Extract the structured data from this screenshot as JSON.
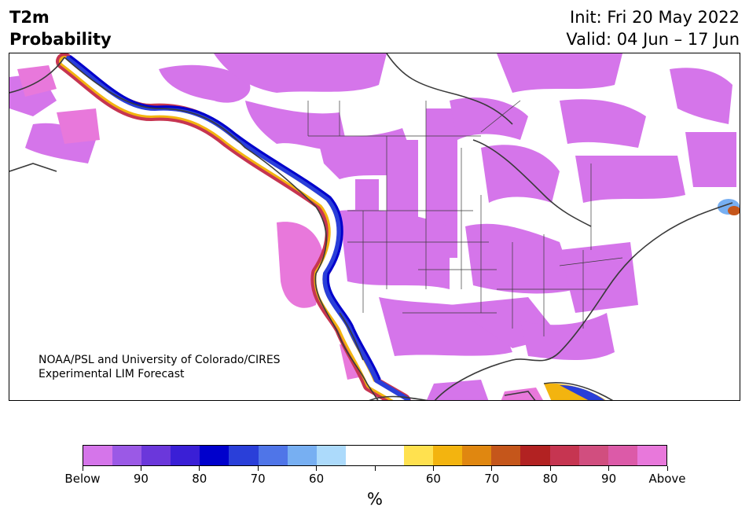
{
  "title": {
    "line1": "T2m",
    "line2": "Probability"
  },
  "run": {
    "init": "Init: Fri 20 May 2022",
    "valid": "Valid: 04 Jun – 17 Jun"
  },
  "credit": {
    "line1": "NOAA/PSL and University of Colorado/CIRES",
    "line2": "Experimental LIM Forecast"
  },
  "colorbar": {
    "colors": [
      "#d575ea",
      "#9b59e6",
      "#6b37db",
      "#3a1fd6",
      "#0000cc",
      "#2a3fd9",
      "#4f75e8",
      "#77aff2",
      "#acdafb",
      "#ffffff",
      "#ffffff",
      "#ffe14f",
      "#f3b40f",
      "#e08710",
      "#c5561b",
      "#b22222",
      "#c63551",
      "#d14e7f",
      "#dc5aa8",
      "#e878db"
    ],
    "labels": [
      "Below",
      "90",
      "80",
      "70",
      "60",
      "",
      "60",
      "70",
      "80",
      "90",
      "Above"
    ],
    "unit": "%"
  },
  "colors": {
    "below_fill": "#d575ea",
    "above_fill": "#e878db",
    "coastline": "#3a3a3a"
  }
}
